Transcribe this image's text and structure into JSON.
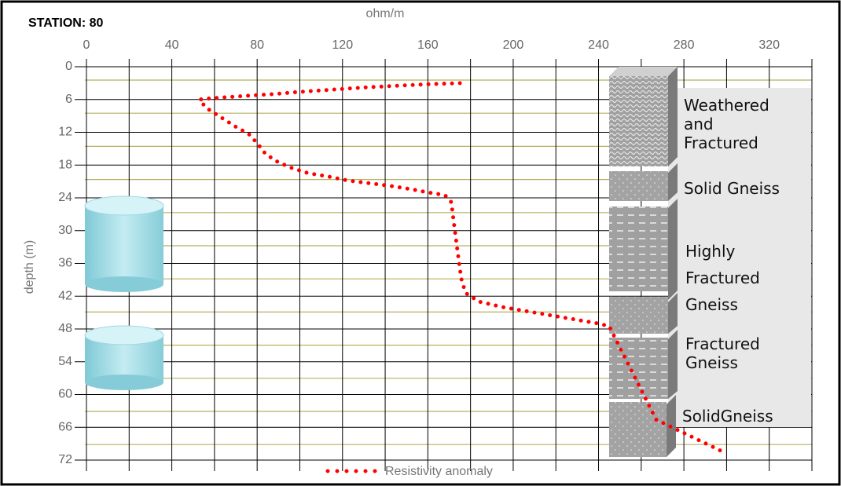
{
  "chart_data": {
    "type": "line",
    "title": "STATION: 80",
    "x_label": "ohm/m",
    "y_label": "depth (m)",
    "xlim": [
      0,
      340
    ],
    "xticks": [
      0,
      40,
      80,
      120,
      160,
      200,
      240,
      280,
      320
    ],
    "xminor": [
      20,
      60,
      100,
      140,
      180,
      220,
      260,
      300,
      340
    ],
    "ylim": [
      0,
      72
    ],
    "yticks": [
      0,
      6,
      12,
      18,
      24,
      30,
      36,
      42,
      48,
      54,
      60,
      66,
      72
    ],
    "y_inverted": true,
    "grid": true,
    "legend": "bottom",
    "series": [
      {
        "name": "Resistivity anomaly",
        "color": "#ff0000",
        "x": [
          175,
          160,
          145,
          130,
          115,
          100,
          88,
          76,
          65,
          58,
          53,
          56,
          62,
          70,
          76,
          80,
          84,
          90,
          96,
          104,
          112,
          122,
          132,
          142,
          152,
          160,
          168,
          171,
          172,
          173,
          174,
          175,
          176,
          178,
          184,
          195,
          210,
          225,
          240,
          245,
          267,
          300
        ],
        "values": [
          3,
          3.2,
          3.5,
          3.8,
          4.2,
          4.6,
          5,
          5.3,
          5.6,
          5.8,
          6,
          7.5,
          9,
          11,
          12.3,
          14,
          16,
          17.5,
          18.5,
          19.5,
          20,
          20.8,
          21.3,
          21.8,
          22.4,
          23,
          23.5,
          24.8,
          28,
          31,
          34,
          37,
          39.5,
          41.5,
          43,
          44,
          45,
          46,
          47,
          47.5,
          64.6,
          70.8
        ]
      }
    ],
    "layers": [
      "Weathered and Fractured",
      "Solid Gneiss",
      "Highly Fractured Gneiss",
      "Fractured Gneiss",
      "SolidGneiss"
    ]
  }
}
